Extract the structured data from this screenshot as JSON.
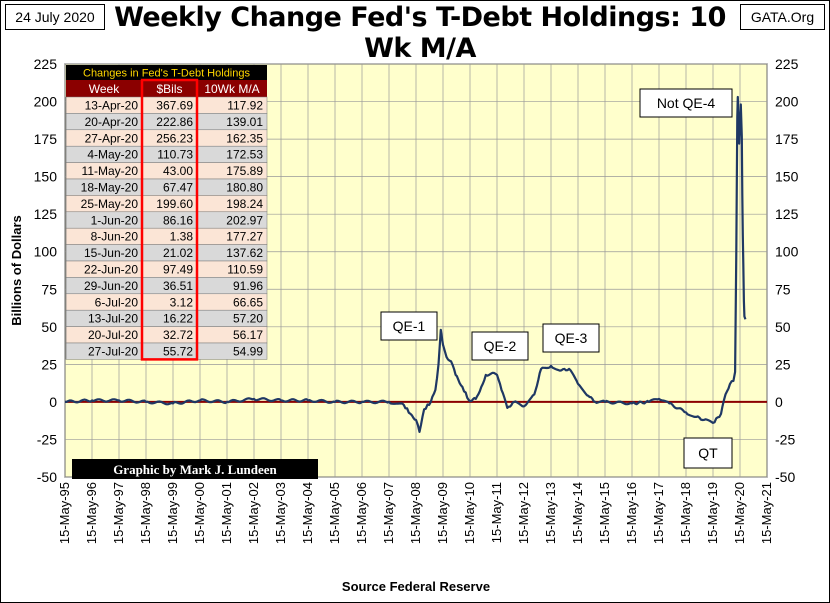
{
  "header": {
    "date": "24 July 2020",
    "title": "Weekly Change Fed's T-Debt Holdings: 10 Wk M/A",
    "site": "GATA.Org"
  },
  "credit": "Graphic by Mark J. Lundeen",
  "colors": {
    "plot_bg": "#FFFFCC",
    "line": "#1F3864",
    "zero_line": "#8B0000",
    "table_header_bg": "#8B0000",
    "table_title_bg": "#000000",
    "table_title_text": "#FFD700",
    "table_highlight": "#FF0000"
  },
  "chart_data": {
    "type": "line",
    "title": "Weekly Change Fed's T-Debt Holdings: 10 Wk M/A",
    "xlabel": "Source Federal Reserve",
    "ylabel": "Billions  of  Dollars",
    "ylim": [
      -50,
      225
    ],
    "y_ticks": [
      225,
      200,
      175,
      150,
      125,
      100,
      75,
      50,
      25,
      0,
      -25,
      -50
    ],
    "x_ticks": [
      "15-May-95",
      "15-May-96",
      "15-May-97",
      "15-May-98",
      "15-May-99",
      "15-May-00",
      "15-May-01",
      "15-May-02",
      "15-May-03",
      "15-May-04",
      "15-May-05",
      "15-May-06",
      "15-May-07",
      "15-May-08",
      "15-May-09",
      "15-May-10",
      "15-May-11",
      "15-May-12",
      "15-May-13",
      "15-May-14",
      "15-May-15",
      "15-May-16",
      "15-May-17",
      "15-May-18",
      "15-May-19",
      "15-May-20",
      "15-May-21"
    ],
    "grid": true,
    "series": [
      {
        "points": [
          [
            "1995-05-15",
            0
          ],
          [
            "1996-05-15",
            1
          ],
          [
            "1997-05-15",
            1
          ],
          [
            "1998-05-15",
            0
          ],
          [
            "1999-05-15",
            -1
          ],
          [
            "2000-05-15",
            1
          ],
          [
            "2001-05-15",
            0
          ],
          [
            "2002-05-15",
            2
          ],
          [
            "2003-05-15",
            1
          ],
          [
            "2004-05-15",
            1
          ],
          [
            "2005-05-15",
            0
          ],
          [
            "2006-05-15",
            0
          ],
          [
            "2007-05-15",
            0
          ],
          [
            "2007-12-01",
            -2
          ],
          [
            "2008-03-01",
            -8
          ],
          [
            "2008-05-15",
            -12
          ],
          [
            "2008-07-01",
            -20
          ],
          [
            "2008-09-01",
            -5
          ],
          [
            "2008-12-01",
            0
          ],
          [
            "2009-02-01",
            8
          ],
          [
            "2009-03-15",
            25
          ],
          [
            "2009-04-15",
            48
          ],
          [
            "2009-05-15",
            38
          ],
          [
            "2009-07-01",
            30
          ],
          [
            "2009-09-01",
            27
          ],
          [
            "2009-11-01",
            18
          ],
          [
            "2010-02-01",
            10
          ],
          [
            "2010-05-01",
            1
          ],
          [
            "2010-08-01",
            2
          ],
          [
            "2010-10-15",
            10
          ],
          [
            "2010-12-15",
            18
          ],
          [
            "2011-03-01",
            19
          ],
          [
            "2011-05-15",
            18
          ],
          [
            "2011-07-15",
            8
          ],
          [
            "2011-10-01",
            -4
          ],
          [
            "2012-01-01",
            0
          ],
          [
            "2012-05-15",
            -3
          ],
          [
            "2012-10-01",
            5
          ],
          [
            "2013-01-01",
            22
          ],
          [
            "2013-05-15",
            24
          ],
          [
            "2013-10-01",
            21
          ],
          [
            "2014-01-15",
            22
          ],
          [
            "2014-05-15",
            12
          ],
          [
            "2014-10-01",
            4
          ],
          [
            "2015-01-01",
            0
          ],
          [
            "2015-05-15",
            0
          ],
          [
            "2016-05-15",
            -1
          ],
          [
            "2017-01-01",
            0
          ],
          [
            "2017-05-15",
            2
          ],
          [
            "2017-10-01",
            -1
          ],
          [
            "2018-05-15",
            -7
          ],
          [
            "2018-10-01",
            -10
          ],
          [
            "2019-01-15",
            -12
          ],
          [
            "2019-05-15",
            -14
          ],
          [
            "2019-09-01",
            -8
          ],
          [
            "2019-11-01",
            5
          ],
          [
            "2020-01-01",
            12
          ],
          [
            "2020-02-15",
            14
          ],
          [
            "2020-03-10",
            20
          ],
          [
            "2020-03-25",
            100
          ],
          [
            "2020-04-08",
            190
          ],
          [
            "2020-04-15",
            203
          ],
          [
            "2020-05-04",
            172
          ],
          [
            "2020-05-25",
            198
          ],
          [
            "2020-06-08",
            177
          ],
          [
            "2020-06-15",
            138
          ],
          [
            "2020-06-22",
            111
          ],
          [
            "2020-06-29",
            92
          ],
          [
            "2020-07-06",
            67
          ],
          [
            "2020-07-13",
            57
          ],
          [
            "2020-07-20",
            56
          ],
          [
            "2020-07-27",
            55
          ]
        ]
      }
    ],
    "annotations": [
      "QE-1",
      "QE-2",
      "QE-3",
      "Not QE-4",
      "QT"
    ],
    "table": {
      "title": "Changes in Fed's T-Debt Holdings",
      "columns": [
        "Week",
        "$Bils",
        "10Wk M/A"
      ],
      "rows": [
        [
          "13-Apr-20",
          "367.69",
          "117.92"
        ],
        [
          "20-Apr-20",
          "222.86",
          "139.01"
        ],
        [
          "27-Apr-20",
          "256.23",
          "162.35"
        ],
        [
          "4-May-20",
          "110.73",
          "172.53"
        ],
        [
          "11-May-20",
          "43.00",
          "175.89"
        ],
        [
          "18-May-20",
          "67.47",
          "180.80"
        ],
        [
          "25-May-20",
          "199.60",
          "198.24"
        ],
        [
          "1-Jun-20",
          "86.16",
          "202.97"
        ],
        [
          "8-Jun-20",
          "1.38",
          "177.27"
        ],
        [
          "15-Jun-20",
          "21.02",
          "137.62"
        ],
        [
          "22-Jun-20",
          "97.49",
          "110.59"
        ],
        [
          "29-Jun-20",
          "36.51",
          "91.96"
        ],
        [
          "6-Jul-20",
          "3.12",
          "66.65"
        ],
        [
          "13-Jul-20",
          "16.22",
          "57.20"
        ],
        [
          "20-Jul-20",
          "32.72",
          "56.17"
        ],
        [
          "27-Jul-20",
          "55.72",
          "54.99"
        ]
      ]
    }
  }
}
